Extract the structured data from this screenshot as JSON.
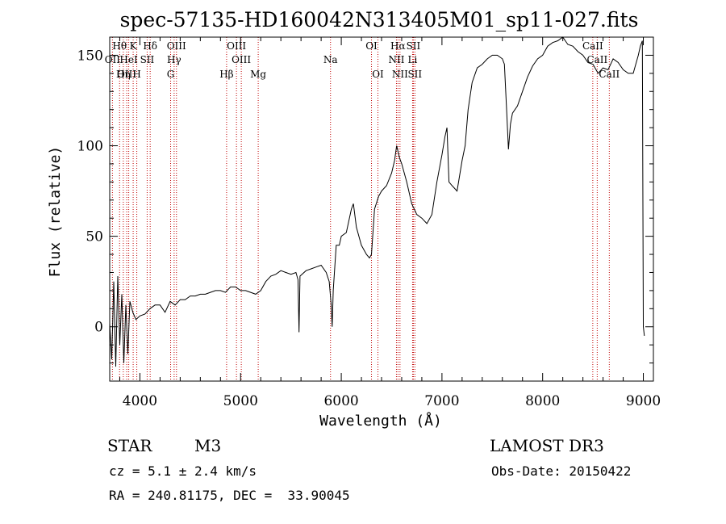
{
  "chart_data": {
    "type": "line",
    "title": "spec-57135-HD160042N313405M01_sp11-027.fits",
    "xlabel": "Wavelength (Å)",
    "ylabel": "Flux (relative)",
    "xlim": [
      3700,
      9100
    ],
    "ylim": [
      -30,
      160
    ],
    "xticks": [
      4000,
      5000,
      6000,
      7000,
      8000,
      9000
    ],
    "yticks": [
      0,
      50,
      100,
      150
    ],
    "series": [
      {
        "name": "flux",
        "points": [
          [
            3700,
            2
          ],
          [
            3720,
            -18
          ],
          [
            3740,
            25
          ],
          [
            3760,
            -22
          ],
          [
            3780,
            28
          ],
          [
            3800,
            -10
          ],
          [
            3820,
            18
          ],
          [
            3840,
            -20
          ],
          [
            3860,
            12
          ],
          [
            3880,
            -15
          ],
          [
            3900,
            14
          ],
          [
            3930,
            8
          ],
          [
            3960,
            4
          ],
          [
            4000,
            6
          ],
          [
            4050,
            7
          ],
          [
            4100,
            10
          ],
          [
            4150,
            12
          ],
          [
            4200,
            12
          ],
          [
            4250,
            8
          ],
          [
            4300,
            14
          ],
          [
            4350,
            12
          ],
          [
            4400,
            15
          ],
          [
            4450,
            15
          ],
          [
            4500,
            17
          ],
          [
            4550,
            17
          ],
          [
            4600,
            18
          ],
          [
            4650,
            18
          ],
          [
            4700,
            19
          ],
          [
            4750,
            20
          ],
          [
            4800,
            20
          ],
          [
            4850,
            19
          ],
          [
            4900,
            22
          ],
          [
            4950,
            22
          ],
          [
            5000,
            20
          ],
          [
            5050,
            20
          ],
          [
            5100,
            19
          ],
          [
            5150,
            18
          ],
          [
            5200,
            20
          ],
          [
            5250,
            25
          ],
          [
            5300,
            28
          ],
          [
            5350,
            29
          ],
          [
            5400,
            31
          ],
          [
            5450,
            30
          ],
          [
            5500,
            29
          ],
          [
            5550,
            30
          ],
          [
            5570,
            26
          ],
          [
            5580,
            -3
          ],
          [
            5590,
            28
          ],
          [
            5650,
            31
          ],
          [
            5700,
            32
          ],
          [
            5750,
            33
          ],
          [
            5800,
            34
          ],
          [
            5850,
            30
          ],
          [
            5880,
            25
          ],
          [
            5900,
            12
          ],
          [
            5910,
            0
          ],
          [
            5920,
            20
          ],
          [
            5950,
            45
          ],
          [
            5980,
            45
          ],
          [
            6000,
            50
          ],
          [
            6050,
            52
          ],
          [
            6100,
            65
          ],
          [
            6120,
            68
          ],
          [
            6150,
            55
          ],
          [
            6200,
            45
          ],
          [
            6250,
            40
          ],
          [
            6280,
            38
          ],
          [
            6300,
            40
          ],
          [
            6330,
            65
          ],
          [
            6370,
            72
          ],
          [
            6400,
            75
          ],
          [
            6450,
            78
          ],
          [
            6500,
            85
          ],
          [
            6530,
            92
          ],
          [
            6550,
            100
          ],
          [
            6580,
            93
          ],
          [
            6600,
            90
          ],
          [
            6650,
            80
          ],
          [
            6700,
            68
          ],
          [
            6750,
            62
          ],
          [
            6800,
            60
          ],
          [
            6850,
            57
          ],
          [
            6900,
            62
          ],
          [
            6950,
            80
          ],
          [
            7000,
            95
          ],
          [
            7030,
            105
          ],
          [
            7050,
            110
          ],
          [
            7070,
            80
          ],
          [
            7100,
            78
          ],
          [
            7150,
            75
          ],
          [
            7200,
            92
          ],
          [
            7230,
            100
          ],
          [
            7260,
            120
          ],
          [
            7300,
            135
          ],
          [
            7350,
            143
          ],
          [
            7400,
            145
          ],
          [
            7450,
            148
          ],
          [
            7500,
            150
          ],
          [
            7550,
            150
          ],
          [
            7600,
            148
          ],
          [
            7620,
            145
          ],
          [
            7640,
            122
          ],
          [
            7660,
            98
          ],
          [
            7680,
            112
          ],
          [
            7700,
            118
          ],
          [
            7750,
            122
          ],
          [
            7800,
            130
          ],
          [
            7850,
            138
          ],
          [
            7900,
            144
          ],
          [
            7950,
            148
          ],
          [
            8000,
            150
          ],
          [
            8050,
            155
          ],
          [
            8100,
            157
          ],
          [
            8150,
            158
          ],
          [
            8200,
            160
          ],
          [
            8250,
            156
          ],
          [
            8300,
            155
          ],
          [
            8350,
            152
          ],
          [
            8400,
            150
          ],
          [
            8450,
            146
          ],
          [
            8500,
            145
          ],
          [
            8550,
            140
          ],
          [
            8600,
            143
          ],
          [
            8650,
            142
          ],
          [
            8700,
            148
          ],
          [
            8750,
            146
          ],
          [
            8800,
            142
          ],
          [
            8850,
            140
          ],
          [
            8900,
            140
          ],
          [
            8950,
            150
          ],
          [
            8970,
            155
          ],
          [
            8990,
            158
          ],
          [
            9000,
            0
          ],
          [
            9010,
            -5
          ]
        ]
      }
    ],
    "lines": [
      {
        "name": "Hθ",
        "x": 3798,
        "row": 0,
        "ax": "left"
      },
      {
        "name": "K",
        "x": 3933,
        "row": 0,
        "ax": "left"
      },
      {
        "name": "Hδ",
        "x": 4102,
        "row": 0,
        "ax": "left"
      },
      {
        "name": "OIII",
        "x": 4363,
        "row": 0,
        "ax": "left"
      },
      {
        "name": "OIII",
        "x": 4959,
        "row": 0,
        "ax": "left"
      },
      {
        "name": "OI",
        "x": 6300,
        "row": 0,
        "ax": "left"
      },
      {
        "name": "Hα",
        "x": 6563,
        "row": 0,
        "ax": "left"
      },
      {
        "name": "SII",
        "x": 6716,
        "row": 0,
        "ax": "left"
      },
      {
        "name": "CaII",
        "x": 8498,
        "row": 0,
        "ax": "left"
      },
      {
        "name": "OII",
        "x": 3727,
        "row": 1,
        "ax": "left"
      },
      {
        "name": "HeI",
        "x": 3889,
        "row": 1,
        "ax": "left"
      },
      {
        "name": "SII",
        "x": 4072,
        "row": 1,
        "ax": "left"
      },
      {
        "name": "Hγ",
        "x": 4340,
        "row": 1,
        "ax": "left"
      },
      {
        "name": "OIII",
        "x": 5007,
        "row": 1,
        "ax": "left"
      },
      {
        "name": "Na",
        "x": 5893,
        "row": 1,
        "ax": "left"
      },
      {
        "name": "NII",
        "x": 6548,
        "row": 1,
        "ax": "left"
      },
      {
        "name": "Li",
        "x": 6708,
        "row": 1,
        "ax": "left"
      },
      {
        "name": "CaII",
        "x": 8542,
        "row": 1,
        "ax": "left"
      },
      {
        "name": "OIII",
        "x": 3869,
        "row": 2,
        "ax": "left"
      },
      {
        "name": "Hη",
        "x": 3835,
        "row": 2,
        "ax": "left"
      },
      {
        "name": "H",
        "x": 3969,
        "row": 2,
        "ax": "left"
      },
      {
        "name": "G",
        "x": 4305,
        "row": 2,
        "ax": "left"
      },
      {
        "name": "Hβ",
        "x": 4861,
        "row": 2,
        "ax": "left"
      },
      {
        "name": "Mg",
        "x": 5175,
        "row": 2,
        "ax": "left"
      },
      {
        "name": "OI",
        "x": 6364,
        "row": 2,
        "ax": "left"
      },
      {
        "name": "NII",
        "x": 6583,
        "row": 2,
        "ax": "left"
      },
      {
        "name": "SII",
        "x": 6731,
        "row": 2,
        "ax": "left"
      },
      {
        "name": "CaII",
        "x": 8662,
        "row": 2,
        "ax": "left"
      }
    ]
  },
  "info": {
    "class": "STAR",
    "subclass": "M3",
    "survey": "LAMOST DR3",
    "cz": "cz = 5.1 ± 2.4 km/s",
    "obs_date": "Obs-Date: 20150422",
    "coords": "RA = 240.81175, DEC =  33.90045"
  }
}
